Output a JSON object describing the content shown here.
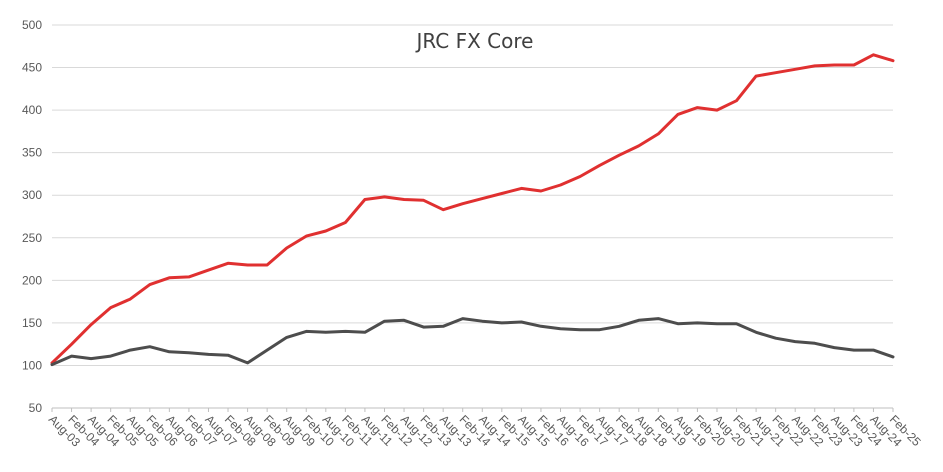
{
  "chart_data": {
    "type": "line",
    "title": "JRC FX Core",
    "xlabel": "",
    "ylabel": "",
    "ylim": [
      50,
      500
    ],
    "yticks": [
      50,
      100,
      150,
      200,
      250,
      300,
      350,
      400,
      450,
      500
    ],
    "x": [
      "Aug-03",
      "Feb-04",
      "Aug-04",
      "Feb-05",
      "Aug-05",
      "Feb-06",
      "Aug-06",
      "Feb-07",
      "Aug-07",
      "Feb-08",
      "Aug-08",
      "Feb-09",
      "Aug-09",
      "Feb-10",
      "Aug-10",
      "Feb-11",
      "Aug-11",
      "Feb-12",
      "Aug-12",
      "Feb-13",
      "Aug-13",
      "Feb-14",
      "Aug-14",
      "Feb-15",
      "Aug-15",
      "Feb-16",
      "Aug-16",
      "Feb-17",
      "Aug-17",
      "Feb-18",
      "Aug-18",
      "Feb-19",
      "Aug-19",
      "Feb-20",
      "Aug-20",
      "Feb-21",
      "Aug-21",
      "Feb-22",
      "Aug-22",
      "Feb-23",
      "Aug-23",
      "Feb-24",
      "Aug-24",
      "Feb-25"
    ],
    "grid": true,
    "legend": "none",
    "series": [
      {
        "color": "#e03030",
        "values": [
          103,
          125,
          148,
          168,
          178,
          195,
          203,
          204,
          212,
          220,
          218,
          218,
          238,
          252,
          258,
          268,
          295,
          298,
          295,
          294,
          283,
          290,
          296,
          302,
          308,
          305,
          312,
          322,
          335,
          347,
          358,
          372,
          395,
          403,
          400,
          411,
          440,
          444,
          448,
          452,
          453,
          453,
          465,
          458
        ]
      },
      {
        "color": "#4d4d4d",
        "values": [
          101,
          111,
          108,
          111,
          118,
          122,
          116,
          115,
          113,
          112,
          103,
          118,
          133,
          140,
          139,
          140,
          139,
          152,
          153,
          145,
          146,
          155,
          152,
          150,
          151,
          146,
          143,
          142,
          142,
          146,
          153,
          155,
          149,
          150,
          149,
          149,
          139,
          132,
          128,
          126,
          121,
          118,
          118,
          110
        ]
      }
    ]
  }
}
